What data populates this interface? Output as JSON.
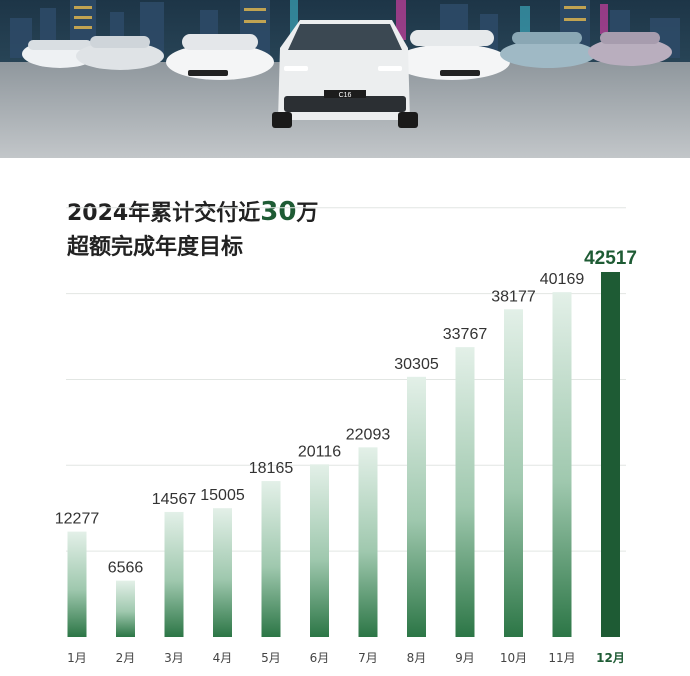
{
  "title": {
    "line1_prefix": "2024年累计交付近",
    "line1_highlight": "30",
    "line1_suffix": "万",
    "line2": "超额完成年度目标"
  },
  "hero": {
    "car_badges": [
      "C16"
    ]
  },
  "colors": {
    "accent": "#1e5b34",
    "bar_light": "#dfeee5",
    "bar_dark": "#2f7a4b"
  },
  "chart_data": {
    "type": "bar",
    "title": "",
    "xlabel": "",
    "ylabel": "",
    "ylim": [
      0,
      50000
    ],
    "grid": true,
    "categories": [
      "1月",
      "2月",
      "3月",
      "4月",
      "5月",
      "6月",
      "7月",
      "8月",
      "9月",
      "10月",
      "11月",
      "12月"
    ],
    "values": [
      12277,
      6566,
      14567,
      15005,
      18165,
      20116,
      22093,
      30305,
      33767,
      38177,
      40169,
      42517
    ],
    "highlight_index": 11
  }
}
